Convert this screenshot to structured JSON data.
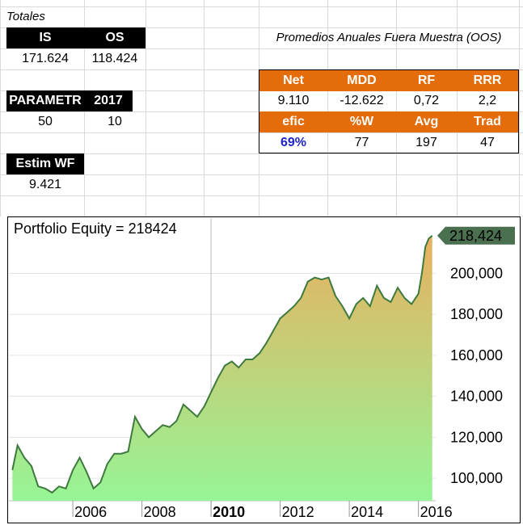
{
  "sheet": {
    "totales_label": "Totales",
    "totals": {
      "headers": [
        "IS",
        "OS"
      ],
      "values": [
        "171.624",
        "118.424"
      ]
    },
    "param": {
      "headers": [
        "PARAMETR",
        "2017"
      ],
      "values": [
        "50",
        "10"
      ]
    },
    "estim": {
      "header": "Estim WF",
      "value": "9.421"
    },
    "oos": {
      "title": "Promedios Anuales Fuera Muestra (OOS)",
      "row1_headers": [
        "Net",
        "MDD",
        "RF",
        "RRR"
      ],
      "row1_values": [
        "9.110",
        "-12.622",
        "0,72",
        "2,2"
      ],
      "row2_headers": [
        "efic",
        "%W",
        "Avg",
        "Trad"
      ],
      "row2_values": [
        "69%",
        "77",
        "197",
        "47"
      ]
    }
  },
  "chart_data": {
    "type": "area",
    "title": "Portfolio Equity = 218424",
    "last_value_label": "218,424",
    "x_tick_labels": [
      "2006",
      "2008",
      "2010",
      "2012",
      "2014",
      "2016"
    ],
    "x_tick_values": [
      2006,
      2008,
      2010,
      2012,
      2014,
      2016
    ],
    "highlighted_x_tick": "2010",
    "y_tick_labels": [
      "100,000",
      "120,000",
      "140,000",
      "160,000",
      "180,000",
      "200,000"
    ],
    "y_tick_values": [
      100000,
      120000,
      140000,
      160000,
      180000,
      200000
    ],
    "xlim": [
      2004.15,
      2016.5
    ],
    "ylim": [
      89000,
      227000
    ],
    "vertical_line_at": 2010,
    "grid": true,
    "colors": {
      "fill_top": "#e8b060",
      "fill_bottom": "#96f596",
      "line": "#3e7a3e",
      "label_bg": "#4a7050"
    },
    "x": [
      2004.25,
      2004.4,
      2004.6,
      2004.8,
      2005.0,
      2005.2,
      2005.4,
      2005.6,
      2005.8,
      2006.0,
      2006.2,
      2006.4,
      2006.6,
      2006.8,
      2007.0,
      2007.2,
      2007.4,
      2007.6,
      2007.8,
      2008.0,
      2008.2,
      2008.4,
      2008.6,
      2008.8,
      2009.0,
      2009.2,
      2009.4,
      2009.6,
      2009.8,
      2010.0,
      2010.2,
      2010.4,
      2010.6,
      2010.8,
      2011.0,
      2011.2,
      2011.4,
      2011.6,
      2011.8,
      2012.0,
      2012.2,
      2012.4,
      2012.6,
      2012.8,
      2013.0,
      2013.2,
      2013.4,
      2013.6,
      2013.8,
      2014.0,
      2014.2,
      2014.4,
      2014.6,
      2014.8,
      2015.0,
      2015.2,
      2015.4,
      2015.6,
      2015.8,
      2016.0,
      2016.1,
      2016.2,
      2016.3,
      2016.4
    ],
    "y": [
      104000,
      116000,
      110000,
      106000,
      96000,
      95000,
      93000,
      96000,
      95000,
      104000,
      110000,
      103000,
      95000,
      98000,
      107000,
      112000,
      112000,
      113000,
      130000,
      124000,
      120000,
      123000,
      126000,
      125000,
      128000,
      136000,
      133000,
      130000,
      135000,
      142000,
      149000,
      155000,
      157000,
      154000,
      158000,
      158000,
      161000,
      166000,
      172000,
      178000,
      181000,
      184000,
      188000,
      196000,
      198000,
      197000,
      198000,
      189000,
      184000,
      178000,
      185000,
      188000,
      184000,
      194000,
      188000,
      186000,
      193000,
      188000,
      185000,
      190000,
      200000,
      213000,
      217000,
      218424
    ]
  }
}
